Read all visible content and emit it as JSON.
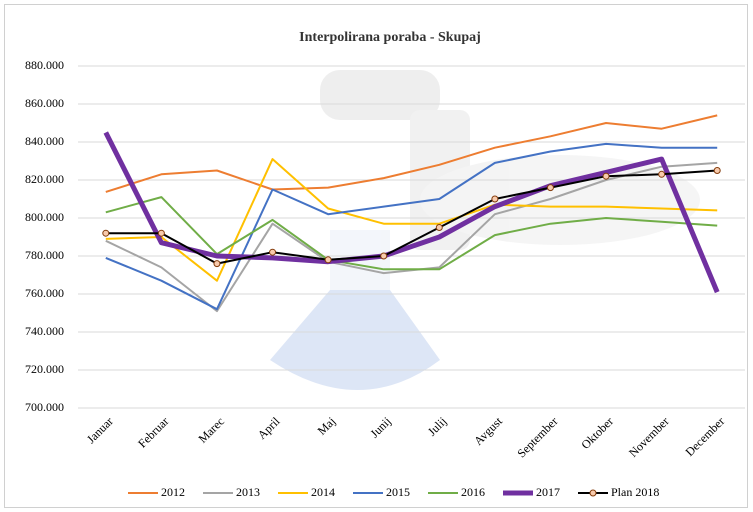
{
  "chart_data": {
    "type": "line",
    "title": "Interpolirana  poraba  - Skupaj",
    "categories": [
      "Januar",
      "Februar",
      "Marec",
      "April",
      "Maj",
      "Junij",
      "Julij",
      "Avgust",
      "September",
      "Oktober",
      "November",
      "December"
    ],
    "ylim": [
      700000,
      880000
    ],
    "yticks": [
      {
        "value": 700000,
        "label": "700.000"
      },
      {
        "value": 720000,
        "label": "720.000"
      },
      {
        "value": 740000,
        "label": "740.000"
      },
      {
        "value": 760000,
        "label": "760.000"
      },
      {
        "value": 780000,
        "label": "780.000"
      },
      {
        "value": 800000,
        "label": "800.000"
      },
      {
        "value": 820000,
        "label": "820.000"
      },
      {
        "value": 840000,
        "label": "840.000"
      },
      {
        "value": 860000,
        "label": "860.000"
      },
      {
        "value": 880000,
        "label": "880.000"
      }
    ],
    "grid": true,
    "legend": "bottom",
    "series": [
      {
        "name": "2012",
        "color": "#ed7d31",
        "line_width": 2,
        "values": [
          813700,
          823000,
          825000,
          815000,
          816000,
          821000,
          828000,
          837000,
          843000,
          850000,
          847000,
          854000
        ]
      },
      {
        "name": "2013",
        "color": "#a5a5a5",
        "line_width": 2,
        "values": [
          788000,
          774000,
          751000,
          797000,
          777000,
          771000,
          774000,
          802000,
          810000,
          820000,
          827000,
          829000
        ]
      },
      {
        "name": "2014",
        "color": "#ffc000",
        "line_width": 2,
        "values": [
          789000,
          790000,
          767000,
          831000,
          805000,
          797000,
          797000,
          807000,
          806000,
          806000,
          805000,
          804000
        ]
      },
      {
        "name": "2015",
        "color": "#4472c4",
        "line_width": 2,
        "values": [
          779000,
          767000,
          752000,
          815000,
          802000,
          806000,
          810000,
          829000,
          835000,
          839000,
          837000,
          837000
        ]
      },
      {
        "name": "2016",
        "color": "#70ad47",
        "line_width": 2,
        "values": [
          803000,
          811000,
          781000,
          799000,
          778000,
          773000,
          773000,
          791000,
          797000,
          800000,
          798000,
          796000
        ]
      },
      {
        "name": "2017",
        "color": "#7030a0",
        "line_width": 5,
        "values": [
          845000,
          787000,
          780000,
          779000,
          777000,
          780000,
          790000,
          806000,
          817000,
          824000,
          831000,
          761000
        ]
      },
      {
        "name": "Plan 2018",
        "color": "#000000",
        "line_width": 2,
        "marker": true,
        "values": [
          792000,
          792000,
          776000,
          782000,
          778000,
          780000,
          795000,
          810000,
          816000,
          822000,
          823000,
          825000
        ]
      }
    ]
  }
}
